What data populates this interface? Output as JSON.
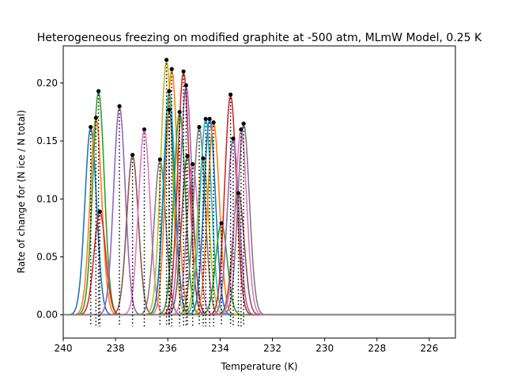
{
  "chart_data": {
    "type": "line",
    "title": "Heterogeneous freezing on modified graphite at -500 atm, MLmW Model, 0.25 K",
    "xlabel": "Temperature (K)",
    "ylabel": "Rate of change for (N ice / N total)",
    "xlim": [
      240,
      225
    ],
    "ylim": [
      -0.02,
      0.232
    ],
    "x_ticks": [
      "240",
      "238",
      "236",
      "234",
      "232",
      "230",
      "228",
      "226"
    ],
    "y_ticks": [
      "0.00",
      "0.05",
      "0.10",
      "0.15",
      "0.20"
    ],
    "grid": false,
    "peak_width_K": 0.22,
    "colors": [
      "#1f77b4",
      "#ff7f0e",
      "#2ca02c",
      "#d62728",
      "#9467bd",
      "#8c564b",
      "#e377c2",
      "#7f7f7f",
      "#bcbd22",
      "#17becf"
    ],
    "series": [
      {
        "peak_T": 238.95,
        "peak": 0.162
      },
      {
        "peak_T": 238.75,
        "peak": 0.17
      },
      {
        "peak_T": 238.65,
        "peak": 0.193
      },
      {
        "peak_T": 238.6,
        "peak": 0.089
      },
      {
        "peak_T": 237.85,
        "peak": 0.18
      },
      {
        "peak_T": 237.35,
        "peak": 0.138
      },
      {
        "peak_T": 236.9,
        "peak": 0.16
      },
      {
        "peak_T": 236.3,
        "peak": 0.134
      },
      {
        "peak_T": 236.05,
        "peak": 0.22
      },
      {
        "peak_T": 235.95,
        "peak": 0.193
      },
      {
        "peak_T": 235.95,
        "peak": 0.177
      },
      {
        "peak_T": 235.85,
        "peak": 0.212
      },
      {
        "peak_T": 235.55,
        "peak": 0.175
      },
      {
        "peak_T": 235.4,
        "peak": 0.21
      },
      {
        "peak_T": 235.3,
        "peak": 0.198
      },
      {
        "peak_T": 235.25,
        "peak": 0.137
      },
      {
        "peak_T": 235.05,
        "peak": 0.13
      },
      {
        "peak_T": 234.8,
        "peak": 0.162
      },
      {
        "peak_T": 234.65,
        "peak": 0.135
      },
      {
        "peak_T": 234.55,
        "peak": 0.169
      },
      {
        "peak_T": 234.4,
        "peak": 0.169
      },
      {
        "peak_T": 234.25,
        "peak": 0.166
      },
      {
        "peak_T": 233.95,
        "peak": 0.079
      },
      {
        "peak_T": 233.6,
        "peak": 0.19
      },
      {
        "peak_T": 233.5,
        "peak": 0.152
      },
      {
        "peak_T": 233.3,
        "peak": 0.105
      },
      {
        "peak_T": 233.2,
        "peak": 0.16
      },
      {
        "peak_T": 233.1,
        "peak": 0.165
      }
    ]
  }
}
